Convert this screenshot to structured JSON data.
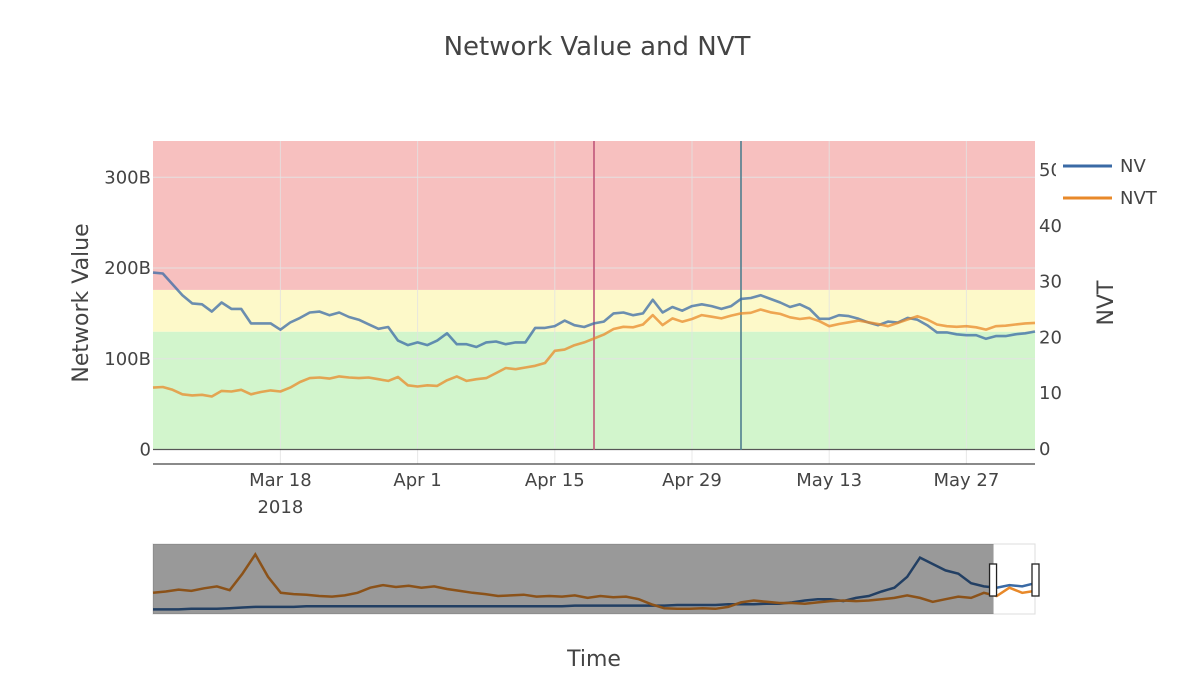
{
  "chart_data": {
    "type": "line",
    "title": "Network Value and NVT",
    "xlabel": "Time",
    "ylabel_left": "Network Value",
    "ylabel_right": "NVT",
    "x_ticks": [
      {
        "date": "2018-03-18",
        "label": "Mar 18",
        "sublabel": "2018"
      },
      {
        "date": "2018-04-01",
        "label": "Apr 1",
        "sublabel": ""
      },
      {
        "date": "2018-04-15",
        "label": "Apr 15",
        "sublabel": ""
      },
      {
        "date": "2018-04-29",
        "label": "Apr 29",
        "sublabel": ""
      },
      {
        "date": "2018-05-13",
        "label": "May 13",
        "sublabel": ""
      },
      {
        "date": "2018-05-27",
        "label": "May 27",
        "sublabel": ""
      }
    ],
    "x_range": [
      "2018-03-05",
      "2018-06-03"
    ],
    "y_left": {
      "range": [
        -16,
        340
      ],
      "ticks": [
        0,
        100,
        200,
        300
      ],
      "tick_labels": [
        "0",
        "100B",
        "200B",
        "300B"
      ]
    },
    "y_right": {
      "range": [
        -2.7,
        55.2
      ],
      "ticks": [
        0,
        10,
        20,
        30,
        40,
        50
      ],
      "tick_labels": [
        "0",
        "10",
        "20",
        "30",
        "40",
        "50"
      ]
    },
    "bands": [
      {
        "zone": "red",
        "from": 28.5,
        "to": 55.2,
        "color": "#f7c0bf"
      },
      {
        "zone": "yellow",
        "from": 21.0,
        "to": 28.5,
        "color": "#fdf9c9"
      },
      {
        "zone": "green",
        "from": 0,
        "to": 21.0,
        "color": "#d2f5cc"
      }
    ],
    "vertical_markers": [
      {
        "date": "2018-04-19",
        "color": "#c0567a"
      },
      {
        "date": "2018-05-04",
        "color": "#4f7f8f"
      }
    ],
    "grid": true,
    "legend_position": "top-right",
    "series": [
      {
        "name": "NV",
        "axis": "left",
        "color": "#3a6aa5",
        "dates": [
          "2018-03-05",
          "2018-03-06",
          "2018-03-07",
          "2018-03-08",
          "2018-03-09",
          "2018-03-10",
          "2018-03-11",
          "2018-03-12",
          "2018-03-13",
          "2018-03-14",
          "2018-03-15",
          "2018-03-16",
          "2018-03-17",
          "2018-03-18",
          "2018-03-19",
          "2018-03-20",
          "2018-03-21",
          "2018-03-22",
          "2018-03-23",
          "2018-03-24",
          "2018-03-25",
          "2018-03-26",
          "2018-03-27",
          "2018-03-28",
          "2018-03-29",
          "2018-03-30",
          "2018-03-31",
          "2018-04-01",
          "2018-04-02",
          "2018-04-03",
          "2018-04-04",
          "2018-04-05",
          "2018-04-06",
          "2018-04-07",
          "2018-04-08",
          "2018-04-09",
          "2018-04-10",
          "2018-04-11",
          "2018-04-12",
          "2018-04-13",
          "2018-04-14",
          "2018-04-15",
          "2018-04-16",
          "2018-04-17",
          "2018-04-18",
          "2018-04-19",
          "2018-04-20",
          "2018-04-21",
          "2018-04-22",
          "2018-04-23",
          "2018-04-24",
          "2018-04-25",
          "2018-04-26",
          "2018-04-27",
          "2018-04-28",
          "2018-04-29",
          "2018-04-30",
          "2018-05-01",
          "2018-05-02",
          "2018-05-03",
          "2018-05-04",
          "2018-05-05",
          "2018-05-06",
          "2018-05-07",
          "2018-05-08",
          "2018-05-09",
          "2018-05-10",
          "2018-05-11",
          "2018-05-12",
          "2018-05-13",
          "2018-05-14",
          "2018-05-15",
          "2018-05-16",
          "2018-05-17",
          "2018-05-18",
          "2018-05-19",
          "2018-05-20",
          "2018-05-21",
          "2018-05-22",
          "2018-05-23",
          "2018-05-24",
          "2018-05-25",
          "2018-05-26",
          "2018-05-27",
          "2018-05-28",
          "2018-05-29",
          "2018-05-30",
          "2018-05-31",
          "2018-06-01",
          "2018-06-02",
          "2018-06-03"
        ],
        "values": [
          195,
          194,
          182,
          170,
          161,
          160,
          152,
          162,
          155,
          155,
          139,
          139,
          139,
          132,
          140,
          145,
          151,
          152,
          148,
          151,
          146,
          143,
          138,
          133,
          135,
          120,
          115,
          118,
          115,
          120,
          128,
          116,
          116,
          113,
          118,
          119,
          116,
          118,
          118,
          134,
          134,
          136,
          142,
          137,
          135,
          139,
          141,
          150,
          151,
          148,
          150,
          165,
          151,
          157,
          153,
          158,
          160,
          158,
          155,
          158,
          166,
          167,
          170,
          166,
          162,
          157,
          160,
          155,
          144,
          144,
          148,
          147,
          144,
          140,
          137,
          141,
          140,
          145,
          143,
          137,
          129,
          129,
          127,
          126,
          126,
          122,
          125,
          125,
          127,
          128,
          130
        ]
      },
      {
        "name": "NVT",
        "axis": "right",
        "color": "#e8892a",
        "dates": [
          "2018-03-05",
          "2018-03-06",
          "2018-03-07",
          "2018-03-08",
          "2018-03-09",
          "2018-03-10",
          "2018-03-11",
          "2018-03-12",
          "2018-03-13",
          "2018-03-14",
          "2018-03-15",
          "2018-03-16",
          "2018-03-17",
          "2018-03-18",
          "2018-03-19",
          "2018-03-20",
          "2018-03-21",
          "2018-03-22",
          "2018-03-23",
          "2018-03-24",
          "2018-03-25",
          "2018-03-26",
          "2018-03-27",
          "2018-03-28",
          "2018-03-29",
          "2018-03-30",
          "2018-03-31",
          "2018-04-01",
          "2018-04-02",
          "2018-04-03",
          "2018-04-04",
          "2018-04-05",
          "2018-04-06",
          "2018-04-07",
          "2018-04-08",
          "2018-04-09",
          "2018-04-10",
          "2018-04-11",
          "2018-04-12",
          "2018-04-13",
          "2018-04-14",
          "2018-04-15",
          "2018-04-16",
          "2018-04-17",
          "2018-04-18",
          "2018-04-19",
          "2018-04-20",
          "2018-04-21",
          "2018-04-22",
          "2018-04-23",
          "2018-04-24",
          "2018-04-25",
          "2018-04-26",
          "2018-04-27",
          "2018-04-28",
          "2018-04-29",
          "2018-04-30",
          "2018-05-01",
          "2018-05-02",
          "2018-05-03",
          "2018-05-04",
          "2018-05-05",
          "2018-05-06",
          "2018-05-07",
          "2018-05-08",
          "2018-05-09",
          "2018-05-10",
          "2018-05-11",
          "2018-05-12",
          "2018-05-13",
          "2018-05-14",
          "2018-05-15",
          "2018-05-16",
          "2018-05-17",
          "2018-05-18",
          "2018-05-19",
          "2018-05-20",
          "2018-05-21",
          "2018-05-22",
          "2018-05-23",
          "2018-05-24",
          "2018-05-25",
          "2018-05-26",
          "2018-05-27",
          "2018-05-28",
          "2018-05-29",
          "2018-05-30",
          "2018-05-31",
          "2018-06-01",
          "2018-06-02",
          "2018-06-03"
        ],
        "values": [
          11.0,
          11.1,
          10.6,
          9.8,
          9.6,
          9.7,
          9.4,
          10.4,
          10.3,
          10.6,
          9.8,
          10.2,
          10.5,
          10.3,
          11.0,
          12.0,
          12.7,
          12.8,
          12.6,
          13.0,
          12.8,
          12.7,
          12.8,
          12.5,
          12.2,
          12.9,
          11.4,
          11.2,
          11.4,
          11.3,
          12.3,
          13.0,
          12.2,
          12.5,
          12.7,
          13.6,
          14.5,
          14.3,
          14.6,
          14.9,
          15.4,
          17.6,
          17.8,
          18.6,
          19.1,
          19.8,
          20.5,
          21.5,
          21.9,
          21.8,
          22.3,
          24.0,
          22.2,
          23.4,
          22.8,
          23.3,
          24.0,
          23.7,
          23.4,
          23.9,
          24.3,
          24.4,
          25.0,
          24.5,
          24.2,
          23.6,
          23.3,
          23.5,
          22.9,
          22.0,
          22.4,
          22.7,
          23.0,
          22.7,
          22.4,
          22.0,
          22.6,
          23.2,
          23.8,
          23.2,
          22.3,
          22.0,
          21.9,
          22.0,
          21.8,
          21.4,
          22.0,
          22.1,
          22.3,
          22.5,
          22.6
        ]
      }
    ],
    "range_slider": {
      "nv_profile": [
        0.04,
        0.04,
        0.04,
        0.05,
        0.05,
        0.05,
        0.06,
        0.07,
        0.08,
        0.08,
        0.08,
        0.08,
        0.09,
        0.09,
        0.09,
        0.09,
        0.09,
        0.09,
        0.09,
        0.09,
        0.09,
        0.09,
        0.09,
        0.09,
        0.09,
        0.09,
        0.09,
        0.09,
        0.09,
        0.09,
        0.09,
        0.09,
        0.09,
        0.1,
        0.1,
        0.1,
        0.1,
        0.1,
        0.1,
        0.1,
        0.1,
        0.11,
        0.11,
        0.11,
        0.11,
        0.12,
        0.12,
        0.12,
        0.13,
        0.13,
        0.15,
        0.18,
        0.2,
        0.2,
        0.17,
        0.22,
        0.25,
        0.32,
        0.38,
        0.55,
        0.85,
        0.75,
        0.65,
        0.6,
        0.45,
        0.4,
        0.38,
        0.42,
        0.4,
        0.45
      ],
      "nvt_profile": [
        0.3,
        0.32,
        0.35,
        0.33,
        0.37,
        0.4,
        0.34,
        0.6,
        0.9,
        0.55,
        0.3,
        0.28,
        0.27,
        0.25,
        0.24,
        0.26,
        0.3,
        0.38,
        0.42,
        0.39,
        0.41,
        0.38,
        0.4,
        0.36,
        0.33,
        0.3,
        0.28,
        0.25,
        0.26,
        0.27,
        0.24,
        0.25,
        0.24,
        0.26,
        0.22,
        0.25,
        0.23,
        0.24,
        0.2,
        0.12,
        0.06,
        0.05,
        0.05,
        0.06,
        0.05,
        0.08,
        0.15,
        0.18,
        0.16,
        0.14,
        0.14,
        0.13,
        0.15,
        0.17,
        0.18,
        0.17,
        0.18,
        0.2,
        0.22,
        0.26,
        0.22,
        0.16,
        0.2,
        0.24,
        0.22,
        0.3,
        0.25,
        0.38,
        0.3,
        0.33
      ],
      "selection": [
        0.953,
        1.0
      ]
    }
  }
}
